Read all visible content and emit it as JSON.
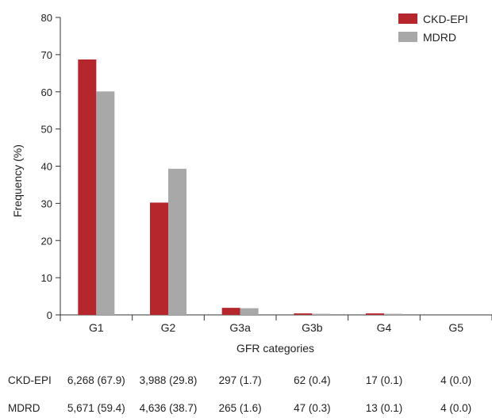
{
  "chart_data": {
    "type": "bar",
    "categories": [
      "G1",
      "G2",
      "G3a",
      "G3b",
      "G4",
      "G5"
    ],
    "series": [
      {
        "name": "CKD-EPI",
        "color": "#b5262d",
        "values": [
          68.7,
          30.2,
          1.9,
          0.4,
          0.4,
          0.0
        ]
      },
      {
        "name": "MDRD",
        "color": "#a8a8a8",
        "values": [
          60.1,
          39.3,
          1.8,
          0.3,
          0.3,
          0.0
        ]
      }
    ],
    "xlabel": "GFR categories",
    "ylabel": "Frequency (%)",
    "ylim": [
      0,
      80
    ],
    "yticks": [
      0,
      10,
      20,
      30,
      40,
      50,
      60,
      70,
      80
    ],
    "grid": false,
    "legend_position": "top-right"
  },
  "table": {
    "rows": [
      {
        "label": "CKD-EPI",
        "cells": [
          "6,268 (67.9)",
          "3,988 (29.8)",
          "297 (1.7)",
          "62 (0.4)",
          "17 (0.1)",
          "4 (0.0)"
        ]
      },
      {
        "label": "MDRD",
        "cells": [
          "5,671 (59.4)",
          "4,636 (38.7)",
          "265 (1.6)",
          "47 (0.3)",
          "13 (0.1)",
          "4 (0.0)"
        ]
      }
    ]
  }
}
